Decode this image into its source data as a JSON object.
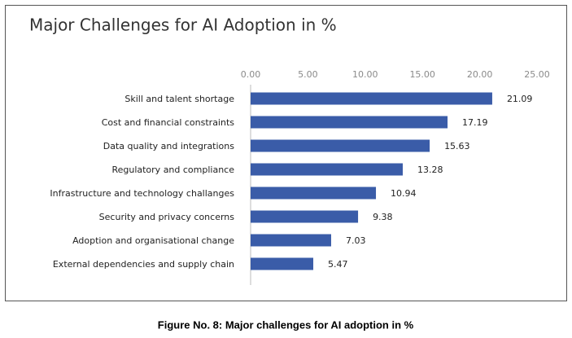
{
  "chart_data": {
    "type": "bar",
    "orientation": "horizontal",
    "title": "Major Challenges for AI Adoption in %",
    "caption": "Figure No. 8: Major challenges for AI adoption in %",
    "categories": [
      "Skill and talent shortage",
      "Cost and financial constraints",
      "Data quality and integrations",
      "Regulatory and compliance",
      "Infrastructure and technology challanges",
      "Security and privacy concerns",
      "Adoption and organisational change",
      "External dependencies and supply chain"
    ],
    "values": [
      21.09,
      17.19,
      15.63,
      13.28,
      10.94,
      9.38,
      7.03,
      5.47
    ],
    "color": "#3a5ca8",
    "xlim": [
      0,
      25
    ],
    "xticks": [
      {
        "value": 0,
        "label": "0.00"
      },
      {
        "value": 5,
        "label": "5.00"
      },
      {
        "value": 10,
        "label": "10.00"
      },
      {
        "value": 15,
        "label": "15.00"
      },
      {
        "value": 20,
        "label": "20.00"
      },
      {
        "value": 25,
        "label": "25.00"
      }
    ],
    "grid": false
  }
}
